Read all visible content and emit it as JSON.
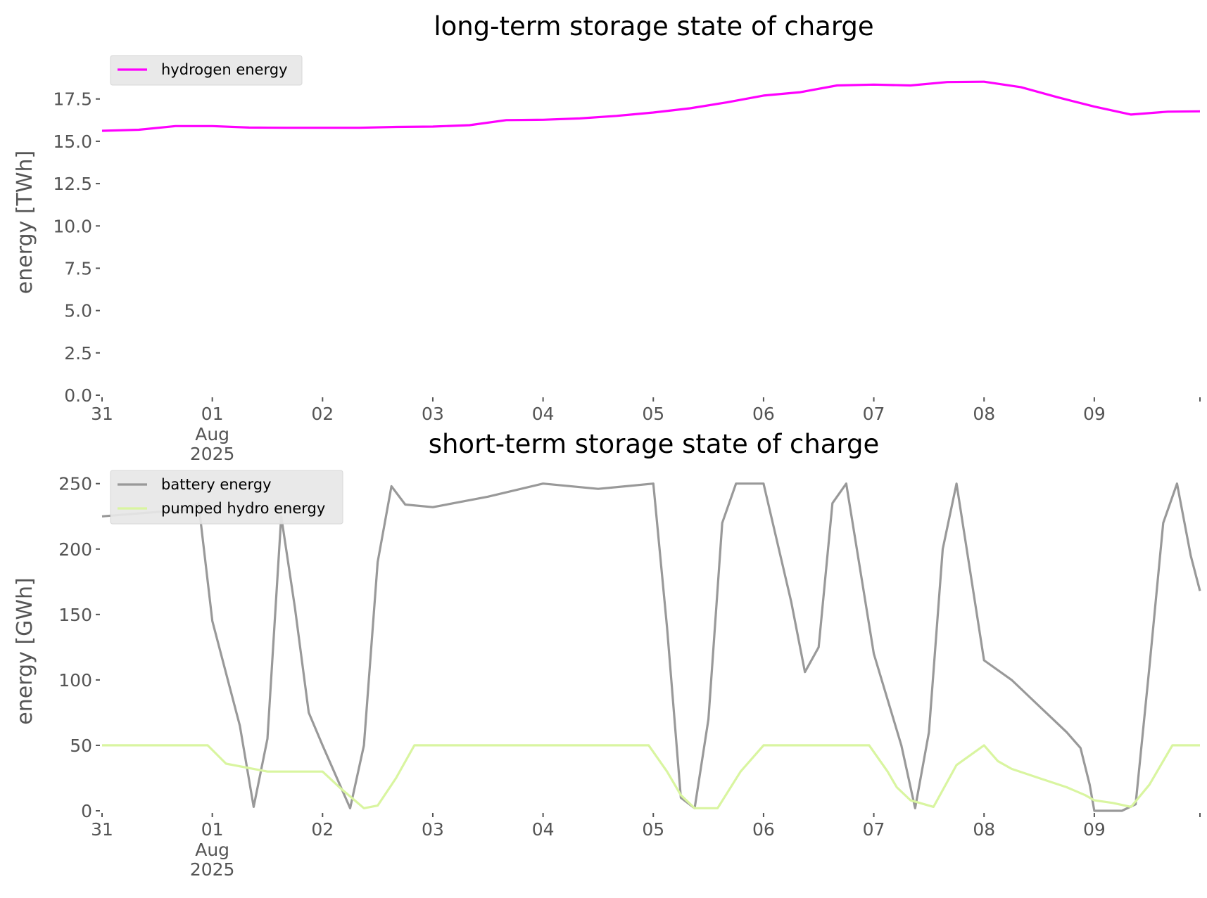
{
  "chart_data": [
    {
      "type": "line",
      "title": "long-term storage state of charge",
      "xlabel": "",
      "ylabel": "energy [TWh]",
      "ylim": [
        0,
        19.4
      ],
      "yticks": [
        0.0,
        2.5,
        5.0,
        7.5,
        10.0,
        12.5,
        15.0,
        17.5
      ],
      "ytick_labels": [
        "0.0",
        "2.5",
        "5.0",
        "7.5",
        "10.0",
        "12.5",
        "15.0",
        "17.5"
      ],
      "xlim": [
        "2025-07-31",
        "2025-08-09T23:00"
      ],
      "xtick_labels": [
        "31",
        "01",
        "02",
        "03",
        "04",
        "05",
        "06",
        "07",
        "08",
        "09"
      ],
      "xtick_sublabel": {
        "month": "Aug",
        "year": "2025"
      },
      "grid": false,
      "legend": "upper-left",
      "series": [
        {
          "name": "hydrogen energy",
          "color": "#ff00ff",
          "x": [
            "2025-07-31T00:00",
            "2025-07-31T08:00",
            "2025-07-31T16:00",
            "2025-08-01T00:00",
            "2025-08-01T08:00",
            "2025-08-01T16:00",
            "2025-08-02T00:00",
            "2025-08-02T08:00",
            "2025-08-02T16:00",
            "2025-08-03T00:00",
            "2025-08-03T08:00",
            "2025-08-03T16:00",
            "2025-08-04T00:00",
            "2025-08-04T08:00",
            "2025-08-04T16:00",
            "2025-08-05T00:00",
            "2025-08-05T08:00",
            "2025-08-05T16:00",
            "2025-08-06T00:00",
            "2025-08-06T08:00",
            "2025-08-06T16:00",
            "2025-08-07T00:00",
            "2025-08-07T08:00",
            "2025-08-07T16:00",
            "2025-08-08T00:00",
            "2025-08-08T08:00",
            "2025-08-08T16:00",
            "2025-08-09T00:00",
            "2025-08-09T08:00",
            "2025-08-09T16:00",
            "2025-08-09T23:00"
          ],
          "values": [
            15.62,
            15.68,
            15.9,
            15.9,
            15.81,
            15.8,
            15.8,
            15.8,
            15.85,
            15.87,
            15.95,
            16.25,
            16.27,
            16.35,
            16.5,
            16.7,
            16.95,
            17.3,
            17.7,
            17.9,
            18.3,
            18.35,
            18.3,
            18.5,
            18.52,
            18.2,
            17.6,
            17.05,
            16.58,
            16.75,
            16.77
          ]
        }
      ]
    },
    {
      "type": "line",
      "title": "short-term storage state of charge",
      "xlabel": "",
      "ylabel": "energy [GWh]",
      "ylim": [
        0,
        252
      ],
      "yticks": [
        0,
        50,
        100,
        150,
        200,
        250
      ],
      "ytick_labels": [
        "0",
        "50",
        "100",
        "150",
        "200",
        "250"
      ],
      "xlim": [
        "2025-07-31",
        "2025-08-09T23:00"
      ],
      "xtick_labels": [
        "31",
        "01",
        "02",
        "03",
        "04",
        "05",
        "06",
        "07",
        "08",
        "09"
      ],
      "xtick_sublabel": {
        "month": "Aug",
        "year": "2025"
      },
      "grid": false,
      "legend": "upper-left",
      "series": [
        {
          "name": "battery energy",
          "color": "#999999",
          "x": [
            "2025-07-31T00:00",
            "2025-07-31T18:00",
            "2025-07-31T21:00",
            "2025-08-01T00:00",
            "2025-08-01T06:00",
            "2025-08-01T09:00",
            "2025-08-01T12:00",
            "2025-08-01T15:00",
            "2025-08-01T18:00",
            "2025-08-01T21:00",
            "2025-08-02T00:00",
            "2025-08-02T06:00",
            "2025-08-02T09:00",
            "2025-08-02T12:00",
            "2025-08-02T15:00",
            "2025-08-02T18:00",
            "2025-08-03T00:00",
            "2025-08-03T12:00",
            "2025-08-04T00:00",
            "2025-08-04T12:00",
            "2025-08-05T00:00",
            "2025-08-05T03:00",
            "2025-08-05T06:00",
            "2025-08-05T09:00",
            "2025-08-05T12:00",
            "2025-08-05T15:00",
            "2025-08-05T18:00",
            "2025-08-06T00:00",
            "2025-08-06T06:00",
            "2025-08-06T09:00",
            "2025-08-06T12:00",
            "2025-08-06T15:00",
            "2025-08-06T18:00",
            "2025-08-07T00:00",
            "2025-08-07T06:00",
            "2025-08-07T09:00",
            "2025-08-07T12:00",
            "2025-08-07T15:00",
            "2025-08-07T18:00",
            "2025-08-08T00:00",
            "2025-08-08T06:00",
            "2025-08-08T12:00",
            "2025-08-08T18:00",
            "2025-08-08T21:00",
            "2025-08-08T23:00",
            "2025-08-09T00:00",
            "2025-08-09T06:00",
            "2025-08-09T09:00",
            "2025-08-09T12:00",
            "2025-08-09T15:00",
            "2025-08-09T18:00",
            "2025-08-09T21:00",
            "2025-08-09T23:00"
          ],
          "values": [
            225,
            230,
            235,
            145,
            65,
            3,
            55,
            225,
            155,
            75,
            50,
            2,
            50,
            190,
            248,
            234,
            232,
            240,
            250,
            246,
            250,
            140,
            10,
            2,
            70,
            220,
            250,
            250,
            160,
            106,
            125,
            235,
            250,
            120,
            50,
            2,
            60,
            200,
            250,
            115,
            100,
            80,
            60,
            48,
            20,
            0,
            0,
            5,
            110,
            220,
            250,
            195,
            168
          ]
        },
        {
          "name": "pumped hydro energy",
          "color": "#d9f5a0",
          "x": [
            "2025-07-31T00:00",
            "2025-07-31T23:00",
            "2025-08-01T03:00",
            "2025-08-01T12:00",
            "2025-08-01T21:00",
            "2025-08-02T00:00",
            "2025-08-02T04:00",
            "2025-08-02T09:00",
            "2025-08-02T12:00",
            "2025-08-02T16:00",
            "2025-08-02T20:00",
            "2025-08-03T00:00",
            "2025-08-04T00:00",
            "2025-08-04T23:00",
            "2025-08-05T03:00",
            "2025-08-05T06:00",
            "2025-08-05T09:00",
            "2025-08-05T14:00",
            "2025-08-05T19:00",
            "2025-08-06T00:00",
            "2025-08-06T23:00",
            "2025-08-07T03:00",
            "2025-08-07T05:00",
            "2025-08-07T08:00",
            "2025-08-07T13:00",
            "2025-08-07T18:00",
            "2025-08-08T00:00",
            "2025-08-08T03:00",
            "2025-08-08T06:00",
            "2025-08-08T12:00",
            "2025-08-08T18:00",
            "2025-08-08T22:00",
            "2025-08-09T00:00",
            "2025-08-09T04:00",
            "2025-08-09T08:00",
            "2025-08-09T12:00",
            "2025-08-09T17:00",
            "2025-08-09T23:00"
          ],
          "values": [
            50,
            50,
            36,
            30,
            30,
            30,
            17,
            2,
            4,
            25,
            50,
            50,
            50,
            50,
            30,
            12,
            2,
            2,
            30,
            50,
            50,
            30,
            18,
            8,
            3,
            35,
            50,
            38,
            32,
            25,
            18,
            12,
            8,
            6,
            3,
            20,
            50,
            50
          ]
        }
      ]
    }
  ]
}
